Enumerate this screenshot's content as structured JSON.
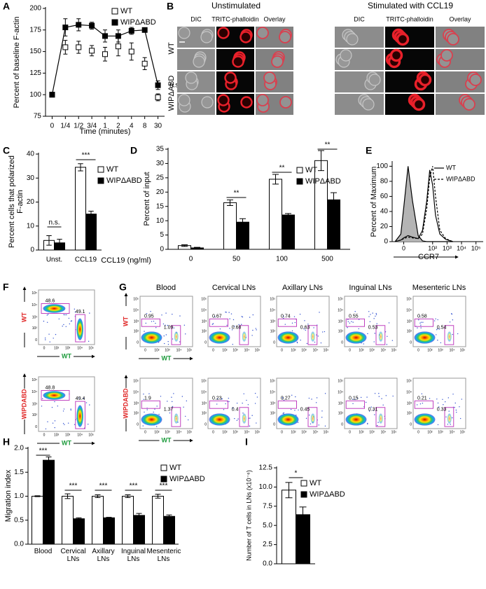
{
  "panel_labels": [
    "A",
    "B",
    "C",
    "D",
    "E",
    "F",
    "G",
    "H",
    "I"
  ],
  "chart_data": [
    {
      "type": "line",
      "ylabel": "Percent of baseline F-actin",
      "xlabel": "Time (minutes)",
      "categories": [
        "0",
        "1/4",
        "1/2",
        "3/4",
        "1",
        "2",
        "4",
        "8",
        "30"
      ],
      "ylim": [
        75,
        200
      ],
      "yticks": [
        75,
        100,
        125,
        150,
        175,
        200
      ],
      "series": [
        {
          "name": "WT",
          "color": "#ffffff",
          "values": [
            100,
            155,
            155,
            151,
            147,
            156,
            150,
            136,
            97
          ],
          "errors": [
            0,
            8,
            7,
            6,
            8,
            11,
            10,
            7,
            4
          ]
        },
        {
          "name": "WIPΔABD",
          "color": "#000000",
          "values": [
            100,
            178,
            181,
            180,
            168,
            168,
            174,
            175,
            111
          ],
          "errors": [
            0,
            10,
            7,
            4,
            7,
            7,
            4,
            2,
            5
          ]
        }
      ],
      "annotations": [
        "n.s."
      ]
    },
    {
      "type": "bar",
      "ylabel": "Percent cells that polarized F-actin",
      "categories": [
        "Unst.",
        "CCL19"
      ],
      "ylim": [
        0,
        40
      ],
      "yticks": [
        0,
        10,
        20,
        30,
        40
      ],
      "series": [
        {
          "name": "WT",
          "color": "#ffffff",
          "values": [
            4,
            34.5
          ],
          "errors": [
            2,
            1.5
          ]
        },
        {
          "name": "WIPΔABD",
          "color": "#000000",
          "values": [
            3,
            15
          ],
          "errors": [
            1.5,
            1.2
          ]
        }
      ],
      "annotations": [
        "n.s.",
        "***"
      ]
    },
    {
      "type": "bar",
      "ylabel": "Percent of input",
      "xlabel": "CCL19 (ng/ml)",
      "categories": [
        "0",
        "50",
        "100",
        "500"
      ],
      "ylim": [
        0,
        35
      ],
      "yticks": [
        0,
        5,
        10,
        15,
        20,
        25,
        30,
        35
      ],
      "series": [
        {
          "name": "WT",
          "color": "#ffffff",
          "values": [
            1.3,
            16.3,
            24.5,
            31
          ],
          "errors": [
            0.3,
            1,
            1.7,
            3.5
          ]
        },
        {
          "name": "WIPΔABD",
          "color": "#000000",
          "values": [
            0.5,
            9.5,
            12,
            17.3
          ],
          "errors": [
            0.2,
            1.2,
            0.5,
            2.5
          ]
        }
      ],
      "annotations": [
        "**",
        "**",
        "**"
      ]
    },
    {
      "type": "line",
      "ylabel": "Percent of Maximum",
      "xlabel": "CCR7",
      "x": [
        -0.6,
        -0.2,
        0,
        0.3,
        0.6,
        1,
        1.3,
        1.6,
        1.8,
        2,
        2.2,
        2.5,
        2.9,
        3.4
      ],
      "xlim": [
        -0.8,
        5.5
      ],
      "xticks": [
        {
          "value": 0,
          "label": "0"
        },
        {
          "value": 2,
          "label": "10²"
        },
        {
          "value": 3,
          "label": "10³"
        },
        {
          "value": 4,
          "label": "10⁴"
        },
        {
          "value": 5,
          "label": "10⁵"
        }
      ],
      "ylim": [
        0,
        105
      ],
      "yticks": [
        0,
        20,
        40,
        60,
        80,
        100
      ],
      "series": [
        {
          "color": "#000000",
          "fill_color": "#b4b4b4",
          "linestyle": "solid",
          "values": [
            0,
            10,
            45,
            100,
            55,
            8,
            1,
            0,
            0,
            0,
            0,
            0,
            0,
            0
          ]
        },
        {
          "name": "WT",
          "color": "#000000",
          "linestyle": "solid",
          "values": [
            0,
            2,
            5,
            8,
            6,
            4,
            15,
            55,
            95,
            75,
            35,
            10,
            3,
            0
          ]
        },
        {
          "name": "WIPΔABD",
          "color": "#000000",
          "linestyle": "dashed",
          "values": [
            0,
            2,
            4,
            6,
            5,
            4,
            10,
            45,
            85,
            100,
            60,
            15,
            4,
            0
          ]
        }
      ]
    },
    {
      "type": "bar",
      "ylabel": "Migration index",
      "categories": [
        "Blood",
        "Cervical LNs",
        "Axillary LNs",
        "Inguinal LNs",
        "Mesenteric LNs"
      ],
      "ylim": [
        0,
        2
      ],
      "yticks": [
        {
          "value": 0,
          "label": "0.0"
        },
        {
          "value": 0.5,
          "label": "0.5"
        },
        {
          "value": 1,
          "label": "1.0"
        },
        {
          "value": 1.5,
          "label": "1.5"
        },
        {
          "value": 2,
          "label": "2.0"
        }
      ],
      "series": [
        {
          "name": "WT",
          "color": "#ffffff",
          "values": [
            1,
            1,
            1,
            1,
            1
          ],
          "errors": [
            0.01,
            0.05,
            0.03,
            0.03,
            0.04
          ]
        },
        {
          "name": "WIPΔABD",
          "color": "#000000",
          "values": [
            1.75,
            0.53,
            0.55,
            0.6,
            0.58
          ],
          "errors": [
            0.07,
            0.02,
            0.01,
            0.04,
            0.03
          ]
        }
      ],
      "annotations": [
        "***",
        "***",
        "***",
        "***",
        "***"
      ]
    },
    {
      "type": "bar",
      "ylabel": "Number of T cells in LNs (x10⁻⁶)",
      "categories": [
        null
      ],
      "ylim": [
        0,
        12.5
      ],
      "yticks": [
        {
          "value": 0,
          "label": "0.0"
        },
        {
          "value": 2.5,
          "label": "2.5"
        },
        {
          "value": 5,
          "label": "5.0"
        },
        {
          "value": 7.5,
          "label": "7.5"
        },
        {
          "value": 10,
          "label": "10.0"
        },
        12.5
      ],
      "series": [
        {
          "name": "WT",
          "color": "#ffffff",
          "values": [
            9.6
          ],
          "errors": [
            1
          ]
        },
        {
          "name": "WIPΔABD",
          "color": "#000000",
          "values": [
            6.4
          ],
          "errors": [
            1
          ]
        }
      ],
      "annotations": [
        "*"
      ]
    }
  ],
  "microscopy": {
    "groups": [
      {
        "title": "Unstimulated",
        "columns": [
          "DIC",
          "TRITC-phalloidin",
          "Overlay"
        ]
      },
      {
        "title": "Stimulated with CCL19",
        "columns": [
          "DIC",
          "TRITC-phalloidin",
          "Overlay"
        ]
      }
    ],
    "rows": [
      "WT",
      "WIPΔABD"
    ]
  },
  "flow": {
    "tick_labels": [
      "0",
      "10²",
      "10³",
      "10⁴",
      "10⁵"
    ],
    "x_label": "WT",
    "F": {
      "rows": [
        {
          "y_label": "WT",
          "gates": [
            "48.6",
            "49.1"
          ]
        },
        {
          "y_label": "WIPDABD",
          "gates": [
            "48.8",
            "49.4"
          ]
        }
      ]
    },
    "G": {
      "columns": [
        "Blood",
        "Cervical LNs",
        "Axillary LNs",
        "Inguinal LNs",
        "Mesenteric LNs"
      ],
      "rows": [
        {
          "y_label": "WT",
          "gates": [
            [
              "0.95",
              "1.09"
            ],
            [
              "0.67",
              "0.68"
            ],
            [
              "0.74",
              "0.63"
            ],
            [
              "0.55",
              "0.53"
            ],
            [
              "0.58",
              "0.54"
            ]
          ]
        },
        {
          "y_label": "WIPDABD",
          "gates": [
            [
              "1.9",
              "1.37"
            ],
            [
              "0.23",
              "0.4"
            ],
            [
              "0.27",
              "0.45"
            ],
            [
              "0.15",
              "0.31"
            ],
            [
              "0.21",
              "0.33"
            ]
          ]
        }
      ]
    }
  }
}
